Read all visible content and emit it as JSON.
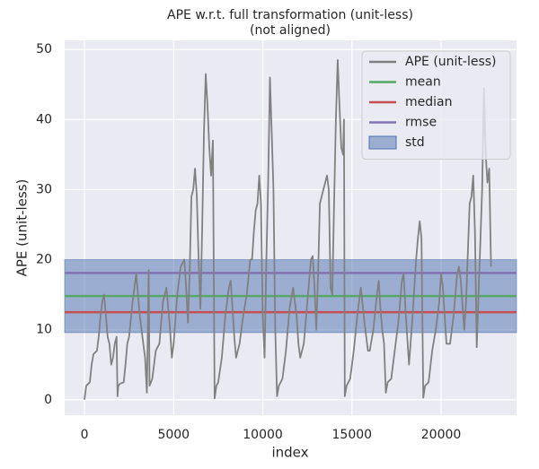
{
  "chart_data": {
    "type": "line",
    "title": "APE w.r.t. full transformation (unit-less)",
    "subtitle": "(not aligned)",
    "xlabel": "index",
    "ylabel": "APE (unit-less)",
    "xlim": [
      -1110,
      24230
    ],
    "ylim": [
      -2.2,
      51.3
    ],
    "xticks": [
      0,
      5000,
      10000,
      15000,
      20000
    ],
    "yticks": [
      0,
      10,
      20,
      30,
      40,
      50
    ],
    "grid": true,
    "legend": "upper right",
    "series": [
      {
        "name": "APE (unit-less)",
        "color": "#808080",
        "x": [
          0,
          100,
          300,
          400,
          500,
          700,
          800,
          900,
          1000,
          1100,
          1200,
          1300,
          1400,
          1500,
          1600,
          1700,
          1800,
          1850,
          1900,
          2000,
          2200,
          2300,
          2400,
          2500,
          2700,
          2900,
          3000,
          3100,
          3300,
          3400,
          3500,
          3600,
          3650,
          3800,
          4000,
          4200,
          4400,
          4600,
          4800,
          4900,
          5000,
          5200,
          5400,
          5600,
          5700,
          5800,
          5900,
          6000,
          6100,
          6200,
          6300,
          6400,
          6500,
          6600,
          6700,
          6800,
          6900,
          7000,
          7100,
          7200,
          7300,
          7400,
          7500,
          7700,
          7900,
          8100,
          8200,
          8300,
          8400,
          8500,
          8700,
          8900,
          9100,
          9300,
          9400,
          9500,
          9600,
          9700,
          9800,
          9900,
          10000,
          10100,
          10200,
          10300,
          10400,
          10500,
          10600,
          10700,
          10800,
          10900,
          11100,
          11300,
          11500,
          11700,
          11900,
          12000,
          12100,
          12300,
          12500,
          12700,
          12800,
          12900,
          13000,
          13100,
          13200,
          13400,
          13600,
          13700,
          13800,
          13900,
          14000,
          14100,
          14200,
          14300,
          14400,
          14500,
          14550,
          14600,
          14700,
          14900,
          15100,
          15300,
          15500,
          15700,
          15900,
          16000,
          16200,
          16400,
          16500,
          16600,
          16700,
          16800,
          16900,
          17000,
          17200,
          17400,
          17600,
          17800,
          17900,
          18000,
          18100,
          18200,
          18400,
          18600,
          18700,
          18800,
          18900,
          19000,
          19100,
          19300,
          19500,
          19700,
          19900,
          20000,
          20100,
          20200,
          20300,
          20500,
          20700,
          20900,
          21000,
          21100,
          21300,
          21400,
          21600,
          21700,
          21800,
          21900,
          22000,
          22100,
          22300,
          22400,
          22500,
          22600,
          22700,
          22800
        ],
        "values": [
          0,
          2,
          2.5,
          5,
          6.5,
          7,
          9,
          12,
          14,
          15,
          12,
          9,
          8,
          5,
          6,
          8,
          9,
          0.5,
          2,
          2.3,
          2.5,
          5,
          8,
          9,
          14,
          18,
          15,
          12,
          8,
          6,
          1,
          18.5,
          2,
          3,
          7,
          8,
          14,
          16,
          10,
          6,
          8,
          15,
          19,
          20,
          16,
          11,
          18,
          29,
          30,
          33,
          29,
          20,
          13,
          24,
          38,
          46.5,
          42,
          36,
          32,
          37,
          0.2,
          2,
          2.5,
          6,
          12,
          16,
          17,
          13,
          9,
          6,
          8,
          12,
          15,
          20,
          20,
          24,
          27,
          28,
          32,
          28,
          12,
          6,
          20,
          31,
          46,
          38,
          30,
          10,
          0.5,
          2,
          3,
          7,
          13,
          16,
          12,
          8,
          6,
          8,
          14,
          20,
          20.5,
          16,
          10,
          18,
          28,
          30,
          32,
          30,
          16,
          15,
          28,
          40,
          48.5,
          42,
          36,
          35,
          40,
          0.5,
          2,
          3,
          7,
          12,
          16,
          11,
          7,
          7,
          10,
          15,
          17,
          13,
          10,
          8,
          1,
          2.5,
          3,
          7,
          11,
          17,
          18,
          13,
          9,
          5,
          12,
          20,
          23,
          25.5,
          23,
          0.3,
          2,
          2.5,
          7,
          10,
          14,
          18,
          16,
          12,
          8,
          8,
          12,
          18,
          19,
          17,
          10,
          14,
          28,
          29,
          32,
          24,
          7.5,
          15,
          30,
          44.5,
          35,
          31,
          33,
          19
        ]
      }
    ],
    "stats": [
      {
        "name": "mean",
        "color": "#55a868",
        "value": 14.8
      },
      {
        "name": "median",
        "color": "#c44e52",
        "value": 12.5
      },
      {
        "name": "rmse",
        "color": "#8172b2",
        "value": 18.1
      },
      {
        "name": "std",
        "color": "#4c72b0",
        "value": 5.2
      }
    ]
  }
}
